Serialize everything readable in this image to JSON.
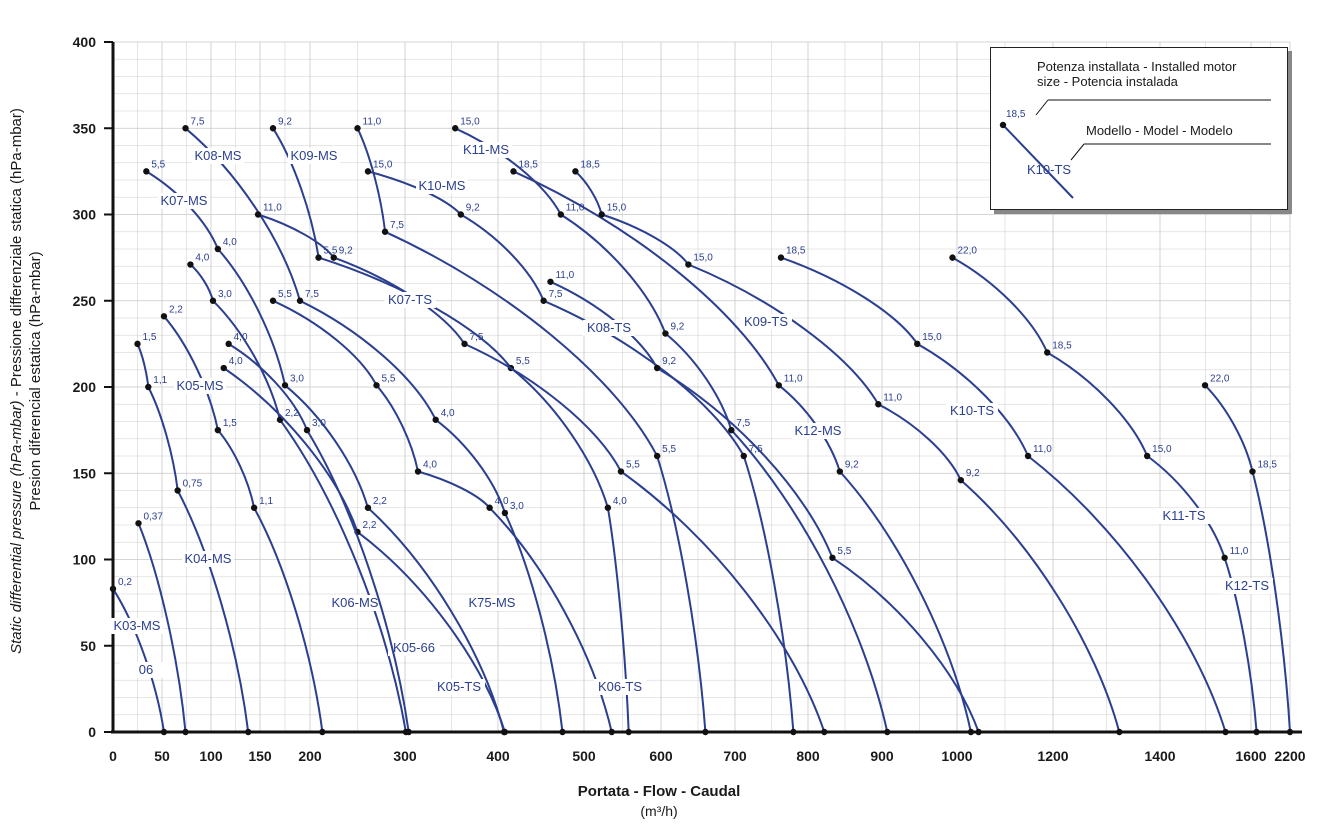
{
  "chart_data": {
    "type": "line",
    "ylabel_italic": "Static differential pressure (hPa-mbar)",
    "ylabel_rest": " - Pressione differenziale statica (hPa-mbar)",
    "ylabel_line2": "Presion diferencial estatica (hPa-mbar)",
    "xlabel": "Portata -  Flow  - Caudal",
    "xunit": "(m³/h)",
    "ylim": [
      0,
      400
    ],
    "yticks": [
      "0",
      "50",
      "100",
      "150",
      "200",
      "250",
      "300",
      "350",
      "400"
    ],
    "xticks": [
      "0",
      "50",
      "100",
      "150",
      "200",
      "300",
      "400",
      "500",
      "600",
      "700",
      "800",
      "900",
      "1000",
      "1200",
      "1400",
      "1600",
      "2200"
    ],
    "grid": true,
    "legend_box": {
      "power_title": "Potenza installata - Installed motor size -   Potencia instalada",
      "power_example": "18,5",
      "model_title": "Modello -  Model - Modelo",
      "model_example": "K10-TS"
    },
    "series": [
      {
        "name": "06",
        "points": [
          [
            0,
            83,
            "0,2"
          ],
          [
            52,
            0,
            ""
          ]
        ]
      },
      {
        "name": "K03-MS",
        "points": [
          [
            26,
            121,
            "0,37"
          ],
          [
            74,
            0,
            ""
          ]
        ]
      },
      {
        "name": "K04-MS",
        "points": [
          [
            25,
            225,
            "1,5"
          ],
          [
            36,
            200,
            "1,1"
          ],
          [
            66,
            140,
            "0,75"
          ],
          [
            138,
            0,
            ""
          ]
        ]
      },
      {
        "name": "K05-MS",
        "points": [
          [
            52,
            241,
            "2,2"
          ],
          [
            107,
            175,
            "1,5"
          ],
          [
            144,
            130,
            "1,1"
          ],
          [
            213,
            0,
            ""
          ]
        ]
      },
      {
        "name": "K06-MS",
        "points": [
          [
            79,
            271,
            "4,0"
          ],
          [
            102,
            250,
            "3,0"
          ],
          [
            170,
            181,
            "2,2"
          ],
          [
            301,
            0,
            ""
          ]
        ]
      },
      {
        "name": "K07-MS",
        "points": [
          [
            34,
            325,
            "5,5"
          ],
          [
            107,
            280,
            "4,0"
          ],
          [
            175,
            201,
            "3,0"
          ],
          [
            261,
            130,
            "2,2"
          ],
          [
            407,
            0,
            ""
          ]
        ]
      },
      {
        "name": "K05-66",
        "points": [
          [
            113,
            211,
            "4,0"
          ],
          [
            250,
            116,
            "2,2"
          ],
          [
            408,
            0,
            ""
          ]
        ]
      },
      {
        "name": "K05-TS",
        "points": [
          [
            118,
            225,
            "4,0"
          ],
          [
            197,
            175,
            "3,0"
          ],
          [
            304,
            0,
            ""
          ]
        ]
      },
      {
        "name": "K75-MS",
        "points": [
          [
            163,
            250,
            "5,5"
          ],
          [
            270,
            201,
            "5,5"
          ],
          [
            314,
            151,
            "4,0"
          ],
          [
            391,
            130,
            "4,0"
          ],
          [
            536,
            0,
            ""
          ]
        ]
      },
      {
        "name": "K08-MS",
        "points": [
          [
            74,
            350,
            "7,5"
          ],
          [
            190,
            250,
            "7,5"
          ],
          [
            333,
            181,
            "4,0"
          ],
          [
            408,
            127,
            "3,0"
          ],
          [
            475,
            0,
            ""
          ]
        ]
      },
      {
        "name": "K09-MS",
        "points": [
          [
            163,
            350,
            "9,2"
          ],
          [
            209,
            275,
            "5,5"
          ],
          [
            415,
            211,
            "5,5"
          ],
          [
            531,
            130,
            "4,0"
          ],
          [
            558,
            0,
            ""
          ]
        ]
      },
      {
        "name": "K07-TS",
        "points": [
          [
            148,
            300,
            "11,0"
          ],
          [
            225,
            275,
            "9,2"
          ],
          [
            364,
            225,
            "7,5"
          ],
          [
            548,
            151,
            "5,5"
          ],
          [
            822,
            0,
            ""
          ]
        ]
      },
      {
        "name": "K06-TS",
        "points": [
          [
            250,
            350,
            "11,0"
          ],
          [
            279,
            290,
            "7,5"
          ],
          [
            595,
            160,
            "5,5"
          ],
          [
            660,
            0,
            ""
          ]
        ]
      },
      {
        "name": "K10-MS",
        "points": [
          [
            261,
            325,
            "15,0"
          ],
          [
            360,
            300,
            "9,2"
          ],
          [
            453,
            250,
            "7,5"
          ],
          [
            712,
            160,
            "7,5"
          ],
          [
            780,
            0,
            ""
          ]
        ]
      },
      {
        "name": "K08-TS",
        "points": [
          [
            461,
            261,
            "11,0"
          ],
          [
            595,
            211,
            "9,2"
          ],
          [
            833,
            101,
            "5,5"
          ],
          [
            1045,
            0,
            ""
          ]
        ]
      },
      {
        "name": "K11-MS",
        "points": [
          [
            354,
            350,
            "15,0"
          ],
          [
            473,
            300,
            "11,0"
          ],
          [
            606,
            231,
            "9,2"
          ],
          [
            695,
            175,
            "7,5"
          ],
          [
            907,
            0,
            ""
          ]
        ]
      },
      {
        "name": "K12-MS",
        "points": [
          [
            418,
            325,
            "18,5"
          ],
          [
            760,
            201,
            "11,0"
          ],
          [
            843,
            151,
            "9,2"
          ],
          [
            1029,
            0,
            ""
          ]
        ]
      },
      {
        "name": "K09-TS",
        "points": [
          [
            490,
            325,
            "18,5"
          ],
          [
            523,
            300,
            "15,0"
          ],
          [
            637,
            271,
            "15,0"
          ],
          [
            895,
            190,
            "11,0"
          ],
          [
            1008,
            146,
            "9,2"
          ],
          [
            1324,
            0,
            ""
          ]
        ]
      },
      {
        "name": "K10-TS",
        "points": [
          [
            763,
            275,
            "18,5"
          ],
          [
            947,
            225,
            "15,0"
          ],
          [
            1148,
            160,
            "11,0"
          ],
          [
            1544,
            0,
            ""
          ]
        ]
      },
      {
        "name": "K11-TS",
        "points": [
          [
            994,
            275,
            "22,0"
          ],
          [
            1188,
            220,
            "18,5"
          ],
          [
            1376,
            160,
            "15,0"
          ],
          [
            1542,
            101,
            "11,0"
          ],
          [
            1686,
            0,
            ""
          ]
        ]
      },
      {
        "name": "K12-TS",
        "points": [
          [
            1499,
            201,
            "22,0"
          ],
          [
            1623,
            151,
            "18,5"
          ],
          [
            2200,
            0,
            ""
          ]
        ]
      }
    ]
  }
}
